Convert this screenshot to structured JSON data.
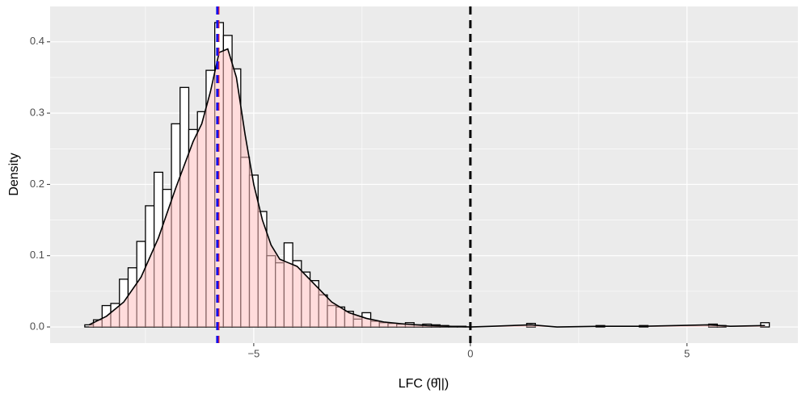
{
  "chart_data": {
    "type": "histogram",
    "xlabel": "LFC (θ̂||)",
    "ylabel": "Density",
    "bins": [
      -8.9,
      -8.7,
      -8.5,
      -8.3,
      -8.1,
      -7.9,
      -7.7,
      -7.5,
      -7.3,
      -7.1,
      -6.9,
      -6.7,
      -6.5,
      -6.3,
      -6.1,
      -5.9,
      -5.7,
      -5.5,
      -5.3,
      -5.1,
      -4.9,
      -4.7,
      -4.5,
      -4.3,
      -4.1,
      -3.9,
      -3.7,
      -3.5,
      -3.3,
      -3.1,
      -2.9,
      -2.7,
      -2.5,
      -2.3,
      -2.1,
      -1.9,
      -1.7,
      -1.5,
      -1.3,
      -1.1,
      -0.9,
      -0.7,
      -0.5,
      -0.3,
      -0.1,
      0.1,
      0.3,
      0.5,
      0.7,
      0.9,
      1.1,
      1.3,
      1.5,
      1.7,
      1.9,
      2.1,
      2.3,
      2.5,
      2.7,
      2.9,
      3.1,
      3.3,
      3.5,
      3.7,
      3.9,
      4.1,
      4.3,
      4.5,
      4.7,
      4.9,
      5.1,
      5.3,
      5.5,
      5.7,
      5.9,
      6.1,
      6.3,
      6.5,
      6.7,
      6.9
    ],
    "values": [
      0.003,
      0.01,
      0.03,
      0.033,
      0.067,
      0.083,
      0.12,
      0.17,
      0.217,
      0.193,
      0.285,
      0.336,
      0.277,
      0.302,
      0.36,
      0.427,
      0.409,
      0.362,
      0.238,
      0.213,
      0.162,
      0.1,
      0.09,
      0.118,
      0.093,
      0.077,
      0.065,
      0.045,
      0.03,
      0.028,
      0.022,
      0.011,
      0.02,
      0.008,
      0.006,
      0.005,
      0.004,
      0.006,
      0.003,
      0.004,
      0.003,
      0.002,
      0.001,
      0.001,
      0,
      0,
      0,
      0,
      0,
      0,
      0,
      0.005,
      0,
      0,
      0,
      0,
      0,
      0,
      0,
      0.002,
      0,
      0,
      0,
      0,
      0.002,
      0,
      0,
      0,
      0,
      0,
      0,
      0,
      0.004,
      0.002,
      0,
      0,
      0,
      0,
      0.006
    ],
    "color": "#000000",
    "density": {
      "color": "#ffc0c0",
      "x": [
        -8.8,
        -8.4,
        -8.0,
        -7.6,
        -7.2,
        -6.8,
        -6.4,
        -6.2,
        -6.0,
        -5.8,
        -5.6,
        -5.4,
        -5.2,
        -5.0,
        -4.8,
        -4.6,
        -4.4,
        -4.2,
        -4.0,
        -3.6,
        -3.2,
        -2.8,
        -2.4,
        -2.0,
        -1.5,
        -1.0,
        0,
        0.5,
        1.4,
        2.0,
        3.0,
        4.0,
        5.5,
        6.0,
        6.8
      ],
      "y": [
        0.003,
        0.015,
        0.035,
        0.07,
        0.125,
        0.195,
        0.26,
        0.285,
        0.33,
        0.385,
        0.39,
        0.35,
        0.27,
        0.2,
        0.15,
        0.115,
        0.095,
        0.09,
        0.085,
        0.06,
        0.035,
        0.02,
        0.012,
        0.007,
        0.004,
        0.002,
        0,
        0.001,
        0.003,
        0,
        0.001,
        0.001,
        0.003,
        0.001,
        0.002
      ]
    },
    "vlines": [
      {
        "x": 0,
        "color": "#000000"
      },
      {
        "x": -5.82,
        "color": "#ff2020"
      },
      {
        "x": -5.84,
        "color": "#1010ee"
      }
    ],
    "xlim": [
      -9.7,
      7.56
    ],
    "ylim": [
      -0.0226,
      0.4496
    ],
    "xticks": [
      {
        "value": -5,
        "label": "−5"
      },
      0,
      5
    ],
    "xminor": [
      -7.5,
      -2.5,
      2.5
    ],
    "yticks": [
      {
        "value": 0,
        "label": "0.0"
      },
      0.1,
      0.2,
      0.3,
      0.4
    ],
    "yminor": [
      0.05,
      0.15,
      0.25,
      0.35
    ],
    "grid": true
  }
}
